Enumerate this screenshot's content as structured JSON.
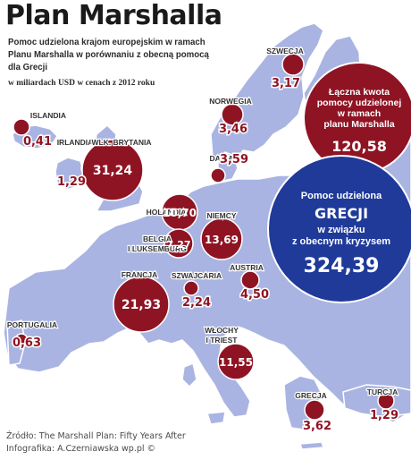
{
  "header": {
    "title": "Plan Marshalla",
    "subtitle": "Pomoc udzielona krajom europejskim w ramach Planu Marshalla w porównaniu z obecną pomocą dla Grecji",
    "unit_note": "w miliardach USD w cenach z 2012 roku"
  },
  "chart_data": {
    "type": "map-bubble",
    "title": "Plan Marshalla",
    "unit": "w miliardach USD w cenach z 2012 roku",
    "countries": [
      {
        "name": "SZWECJA",
        "value": "3,17"
      },
      {
        "name": "NORWEGIA",
        "value": "3,46"
      },
      {
        "name": "ISLANDIA",
        "value": "0,41"
      },
      {
        "name": "IRLANDIA",
        "value": "1,29"
      },
      {
        "name": "WLK. BRYTANIA",
        "value": "31,24"
      },
      {
        "name": "DANIA",
        "value": "3,59"
      },
      {
        "name": "HOLANDIA",
        "value": "10,70"
      },
      {
        "name": "NIEMCY",
        "value": "13,69"
      },
      {
        "name": "BELGIA I LUKSEMBURG",
        "value": "7,27"
      },
      {
        "name": "FRANCJA",
        "value": "21,93"
      },
      {
        "name": "SZWAJCARIA",
        "value": "2,24"
      },
      {
        "name": "AUSTRIA",
        "value": "4,50"
      },
      {
        "name": "PORTUGALIA",
        "value": "0,63"
      },
      {
        "name": "WŁOCHY I TRIEST",
        "value": "11,55"
      },
      {
        "name": "GRECJA",
        "value": "3,62"
      },
      {
        "name": "TURCJA",
        "value": "1,29"
      }
    ],
    "total_marshall": {
      "line1": "Łączna kwota",
      "line2": "pomocy udzielonej",
      "line3": "w ramach",
      "line4": "planu Marshalla",
      "value": "120,58"
    },
    "greece_now": {
      "line1": "Pomoc udzielona",
      "line2": "GRECJI",
      "line3": "w związku",
      "line4": "z obecnym kryzysem",
      "value": "324,39"
    }
  },
  "footer": {
    "source": "Źródło: The Marshall Plan: Fifty Years After",
    "credit": "Infografika: A.Czerniawska wp.pl ©"
  },
  "colors": {
    "land": "#a9b4e2",
    "land_stroke": "#ffffff",
    "bubble_dark": "#8f1423",
    "bubble_blue": "#1f3a99",
    "label": "#333333",
    "value_on_white": "#8f1423"
  }
}
